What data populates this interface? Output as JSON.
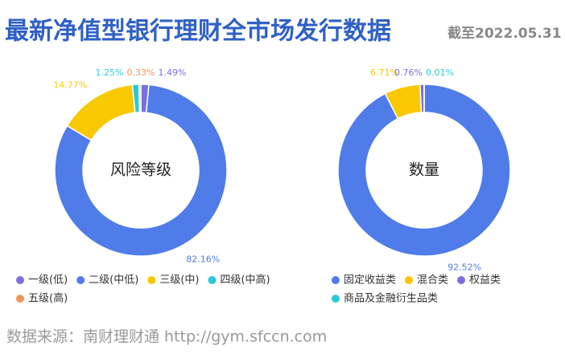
{
  "header": {
    "title": "最新净值型银行理财全市场发行数据",
    "date": "截至2022.05.31"
  },
  "chart_data": [
    {
      "type": "pie",
      "hole": true,
      "title": "风险等级",
      "categories": [
        "一级(低)",
        "二级(中低)",
        "三级(中)",
        "四级(中高)",
        "五级(高)"
      ],
      "values": [
        1.49,
        82.16,
        14.77,
        1.25,
        0.33
      ],
      "value_labels": [
        "1.49%",
        "82.16%",
        "14.77%",
        "1.25%",
        "0.33%"
      ],
      "colors": [
        "#7b6fe0",
        "#4f7ce9",
        "#f8c800",
        "#2ccad6",
        "#f2955a"
      ]
    },
    {
      "type": "pie",
      "hole": true,
      "title": "数量",
      "categories": [
        "固定收益类",
        "混合类",
        "权益类",
        "商品及金融衍生品类"
      ],
      "values": [
        92.52,
        6.71,
        0.76,
        0.01
      ],
      "value_labels": [
        "92.52%",
        "6.71%",
        "0.76%",
        "0.01%"
      ],
      "colors": [
        "#4f7ce9",
        "#f8c800",
        "#7b6fe0",
        "#2ccad6"
      ]
    }
  ],
  "footer": {
    "source": "数据来源：南财理财通 http://gym.sfccn.com"
  }
}
